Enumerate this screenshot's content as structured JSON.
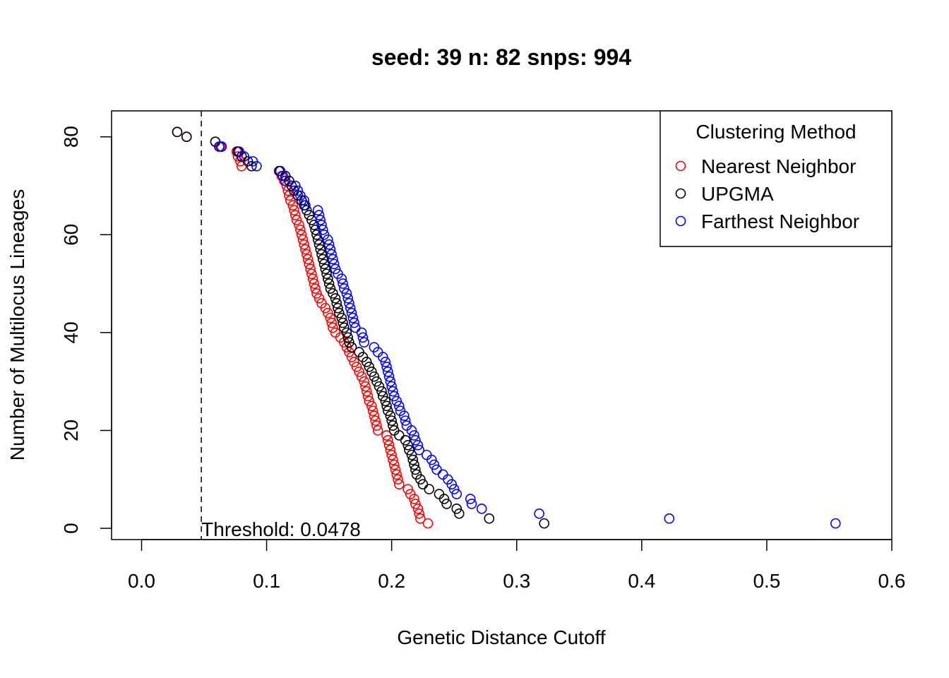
{
  "chart_data": {
    "type": "scatter",
    "title": "seed: 39 n: 82 snps: 994",
    "xlabel": "Genetic Distance Cutoff",
    "ylabel": "Number of Multilocus Lineages",
    "xlim": [
      -0.024,
      0.6
    ],
    "ylim": [
      -2.3,
      85.3
    ],
    "x_ticks": [
      "0.0",
      "0.1",
      "0.2",
      "0.3",
      "0.4",
      "0.5",
      "0.6"
    ],
    "y_ticks": [
      "0",
      "20",
      "40",
      "60",
      "80"
    ],
    "grid": false,
    "legend": {
      "title": "Clustering Method",
      "position": "top-right",
      "marker": "open-circle"
    },
    "threshold": {
      "x": 0.0478,
      "label": "Threshold: 0.0478",
      "style": "dashed"
    },
    "series": [
      {
        "name": "Nearest Neighbor",
        "color": "#ff0000",
        "points": [
          [
            0.0285,
            81
          ],
          [
            0.036,
            80
          ],
          [
            0.059,
            79
          ],
          [
            0.063,
            78
          ],
          [
            0.076,
            77
          ],
          [
            0.077,
            76
          ],
          [
            0.079,
            75
          ],
          [
            0.08,
            74
          ],
          [
            0.11,
            73
          ],
          [
            0.112,
            72
          ],
          [
            0.114,
            71
          ],
          [
            0.116,
            70
          ],
          [
            0.117,
            69
          ],
          [
            0.118,
            68
          ],
          [
            0.119,
            67
          ],
          [
            0.121,
            66
          ],
          [
            0.122,
            65
          ],
          [
            0.123,
            64
          ],
          [
            0.124,
            63
          ],
          [
            0.126,
            62
          ],
          [
            0.127,
            61
          ],
          [
            0.128,
            60
          ],
          [
            0.129,
            59
          ],
          [
            0.13,
            58
          ],
          [
            0.131,
            57
          ],
          [
            0.132,
            56
          ],
          [
            0.133,
            55
          ],
          [
            0.134,
            54
          ],
          [
            0.135,
            53
          ],
          [
            0.136,
            52
          ],
          [
            0.137,
            51
          ],
          [
            0.138,
            50
          ],
          [
            0.139,
            49
          ],
          [
            0.14,
            48
          ],
          [
            0.142,
            47
          ],
          [
            0.144,
            46
          ],
          [
            0.147,
            45
          ],
          [
            0.149,
            44
          ],
          [
            0.151,
            43
          ],
          [
            0.152,
            42
          ],
          [
            0.153,
            41
          ],
          [
            0.155,
            40
          ],
          [
            0.159,
            39
          ],
          [
            0.162,
            38
          ],
          [
            0.164,
            37
          ],
          [
            0.166,
            36
          ],
          [
            0.168,
            35
          ],
          [
            0.17,
            34
          ],
          [
            0.172,
            33
          ],
          [
            0.174,
            32
          ],
          [
            0.176,
            31
          ],
          [
            0.178,
            30
          ],
          [
            0.179,
            29
          ],
          [
            0.18,
            28
          ],
          [
            0.181,
            27
          ],
          [
            0.182,
            26
          ],
          [
            0.184,
            25
          ],
          [
            0.185,
            24
          ],
          [
            0.186,
            23
          ],
          [
            0.187,
            22
          ],
          [
            0.188,
            21
          ],
          [
            0.189,
            20
          ],
          [
            0.196,
            19
          ],
          [
            0.197,
            18
          ],
          [
            0.198,
            17
          ],
          [
            0.199,
            16
          ],
          [
            0.2,
            15
          ],
          [
            0.201,
            14
          ],
          [
            0.202,
            13
          ],
          [
            0.203,
            12
          ],
          [
            0.204,
            11
          ],
          [
            0.205,
            10
          ],
          [
            0.206,
            9
          ],
          [
            0.213,
            8
          ],
          [
            0.215,
            7
          ],
          [
            0.218,
            6
          ],
          [
            0.219,
            5
          ],
          [
            0.221,
            4
          ],
          [
            0.222,
            3
          ],
          [
            0.223,
            2
          ],
          [
            0.229,
            1
          ]
        ]
      },
      {
        "name": "UPGMA",
        "color": "#000000",
        "points": [
          [
            0.0285,
            81
          ],
          [
            0.036,
            80
          ],
          [
            0.059,
            79
          ],
          [
            0.064,
            78
          ],
          [
            0.077,
            77
          ],
          [
            0.08,
            76
          ],
          [
            0.085,
            75
          ],
          [
            0.088,
            74
          ],
          [
            0.11,
            73
          ],
          [
            0.115,
            72
          ],
          [
            0.118,
            71
          ],
          [
            0.12,
            70
          ],
          [
            0.122,
            69
          ],
          [
            0.125,
            68
          ],
          [
            0.128,
            67
          ],
          [
            0.13,
            66
          ],
          [
            0.132,
            65
          ],
          [
            0.134,
            64
          ],
          [
            0.136,
            63
          ],
          [
            0.138,
            62
          ],
          [
            0.139,
            61
          ],
          [
            0.14,
            60
          ],
          [
            0.141,
            59
          ],
          [
            0.142,
            58
          ],
          [
            0.143,
            57
          ],
          [
            0.144,
            56
          ],
          [
            0.145,
            55
          ],
          [
            0.146,
            54
          ],
          [
            0.147,
            53
          ],
          [
            0.148,
            52
          ],
          [
            0.149,
            51
          ],
          [
            0.15,
            50
          ],
          [
            0.151,
            49
          ],
          [
            0.153,
            48
          ],
          [
            0.155,
            47
          ],
          [
            0.156,
            46
          ],
          [
            0.157,
            45
          ],
          [
            0.158,
            44
          ],
          [
            0.16,
            43
          ],
          [
            0.161,
            42
          ],
          [
            0.162,
            41
          ],
          [
            0.164,
            40
          ],
          [
            0.165,
            39
          ],
          [
            0.166,
            38
          ],
          [
            0.168,
            37
          ],
          [
            0.174,
            36
          ],
          [
            0.177,
            35
          ],
          [
            0.18,
            34
          ],
          [
            0.182,
            33
          ],
          [
            0.184,
            32
          ],
          [
            0.186,
            31
          ],
          [
            0.188,
            30
          ],
          [
            0.19,
            29
          ],
          [
            0.192,
            28
          ],
          [
            0.193,
            27
          ],
          [
            0.195,
            26
          ],
          [
            0.196,
            25
          ],
          [
            0.197,
            24
          ],
          [
            0.199,
            23
          ],
          [
            0.2,
            22
          ],
          [
            0.201,
            21
          ],
          [
            0.202,
            20
          ],
          [
            0.206,
            19
          ],
          [
            0.211,
            18
          ],
          [
            0.213,
            17
          ],
          [
            0.214,
            16
          ],
          [
            0.216,
            15
          ],
          [
            0.217,
            14
          ],
          [
            0.218,
            13
          ],
          [
            0.219,
            12
          ],
          [
            0.22,
            11
          ],
          [
            0.223,
            10
          ],
          [
            0.225,
            9
          ],
          [
            0.23,
            8
          ],
          [
            0.238,
            7
          ],
          [
            0.242,
            6
          ],
          [
            0.244,
            5
          ],
          [
            0.252,
            4
          ],
          [
            0.254,
            3
          ],
          [
            0.278,
            2
          ],
          [
            0.322,
            1
          ]
        ]
      },
      {
        "name": "Farthest Neighbor",
        "color": "#0000ff",
        "points": [
          [
            0.062,
            78
          ],
          [
            0.064,
            78
          ],
          [
            0.078,
            77
          ],
          [
            0.082,
            76
          ],
          [
            0.089,
            75
          ],
          [
            0.092,
            74
          ],
          [
            0.111,
            73
          ],
          [
            0.113,
            72
          ],
          [
            0.115,
            71
          ],
          [
            0.123,
            70
          ],
          [
            0.125,
            69
          ],
          [
            0.127,
            68
          ],
          [
            0.13,
            67
          ],
          [
            0.131,
            66
          ],
          [
            0.141,
            65
          ],
          [
            0.142,
            64
          ],
          [
            0.143,
            63
          ],
          [
            0.144,
            62
          ],
          [
            0.145,
            61
          ],
          [
            0.146,
            60
          ],
          [
            0.149,
            59
          ],
          [
            0.15,
            58
          ],
          [
            0.151,
            57
          ],
          [
            0.152,
            56
          ],
          [
            0.153,
            55
          ],
          [
            0.154,
            54
          ],
          [
            0.155,
            53
          ],
          [
            0.157,
            52
          ],
          [
            0.16,
            51
          ],
          [
            0.161,
            50
          ],
          [
            0.162,
            49
          ],
          [
            0.164,
            48
          ],
          [
            0.165,
            47
          ],
          [
            0.166,
            46
          ],
          [
            0.167,
            45
          ],
          [
            0.168,
            44
          ],
          [
            0.169,
            43
          ],
          [
            0.17,
            42
          ],
          [
            0.171,
            41
          ],
          [
            0.176,
            40
          ],
          [
            0.177,
            39
          ],
          [
            0.178,
            38
          ],
          [
            0.186,
            37
          ],
          [
            0.189,
            36
          ],
          [
            0.193,
            35
          ],
          [
            0.195,
            34
          ],
          [
            0.196,
            33
          ],
          [
            0.197,
            32
          ],
          [
            0.198,
            31
          ],
          [
            0.199,
            30
          ],
          [
            0.2,
            29
          ],
          [
            0.201,
            28
          ],
          [
            0.202,
            27
          ],
          [
            0.204,
            26
          ],
          [
            0.206,
            25
          ],
          [
            0.207,
            24
          ],
          [
            0.21,
            23
          ],
          [
            0.211,
            22
          ],
          [
            0.212,
            21
          ],
          [
            0.216,
            20
          ],
          [
            0.218,
            19
          ],
          [
            0.219,
            18
          ],
          [
            0.221,
            17
          ],
          [
            0.222,
            16
          ],
          [
            0.228,
            15
          ],
          [
            0.232,
            14
          ],
          [
            0.234,
            13
          ],
          [
            0.236,
            12
          ],
          [
            0.241,
            11
          ],
          [
            0.245,
            10
          ],
          [
            0.248,
            9
          ],
          [
            0.25,
            8
          ],
          [
            0.252,
            7
          ],
          [
            0.263,
            6
          ],
          [
            0.264,
            5
          ],
          [
            0.272,
            4
          ],
          [
            0.318,
            3
          ],
          [
            0.422,
            2
          ],
          [
            0.555,
            1
          ]
        ]
      }
    ]
  }
}
